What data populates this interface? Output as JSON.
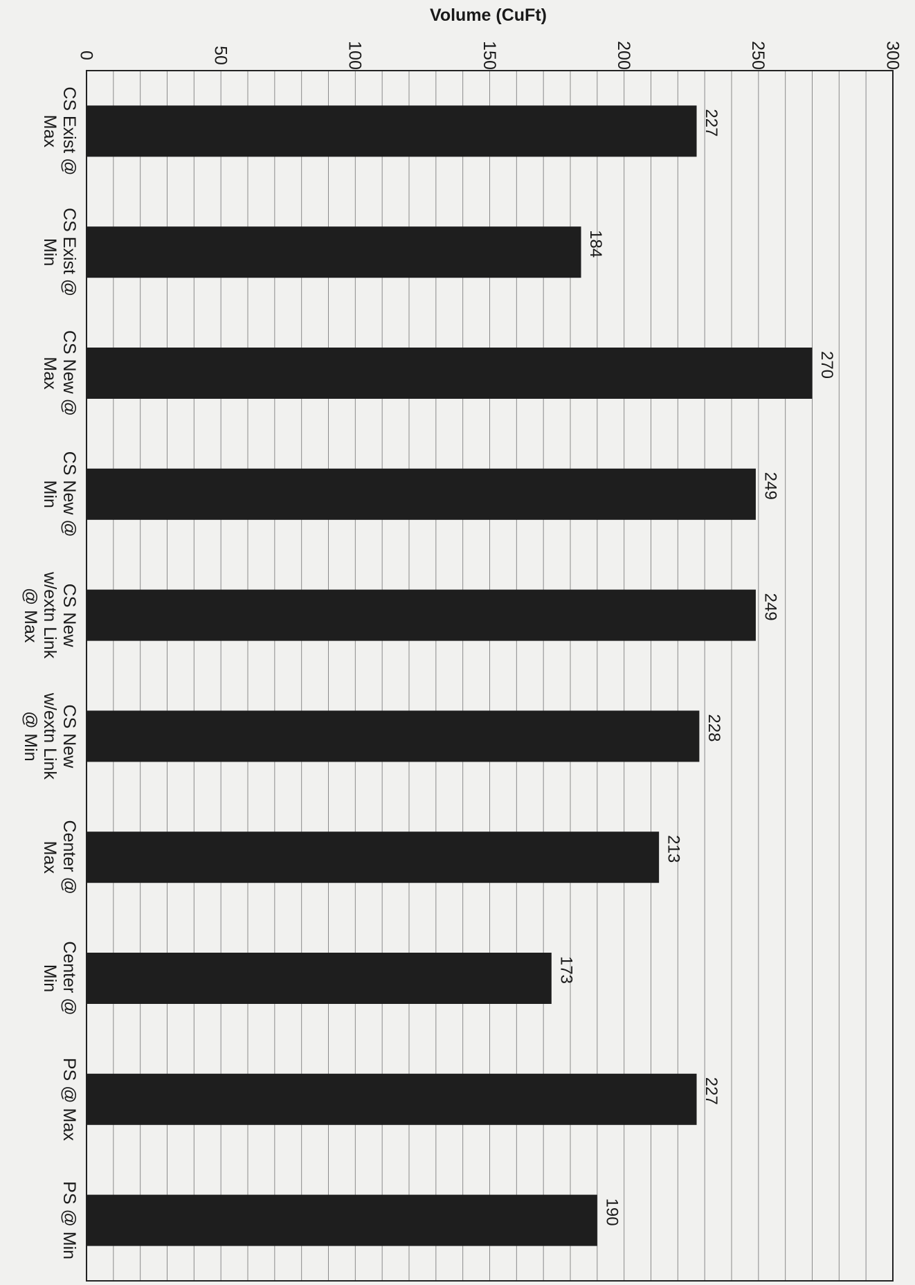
{
  "chart_data": {
    "type": "bar",
    "orientation": "rotated-90-clockwise",
    "title": "",
    "xlabel": "",
    "ylabel": "Volume (CuFt)",
    "categories": [
      [
        "CS Exist @",
        "Max"
      ],
      [
        "CS Exist @",
        "Min"
      ],
      [
        "CS New @",
        "Max"
      ],
      [
        "CS New @",
        "Min"
      ],
      [
        "CS New",
        "w/extn Link",
        "@ Max"
      ],
      [
        "CS New",
        "w/extn Link",
        "@ Min"
      ],
      [
        "Center @",
        "Max"
      ],
      [
        "Center @",
        "Min"
      ],
      [
        "PS @ Max"
      ],
      [
        "PS @ Min"
      ]
    ],
    "values": [
      227,
      184,
      270,
      249,
      249,
      228,
      213,
      173,
      227,
      190
    ],
    "data_labels": [
      "227",
      "184",
      "270",
      "249",
      "249",
      "228",
      "213",
      "173",
      "227",
      "190"
    ],
    "ylim": [
      0,
      300
    ],
    "y_ticks": [
      0,
      50,
      100,
      150,
      200,
      250,
      300
    ],
    "y_tick_labels": [
      "0",
      "50",
      "100",
      "150",
      "200",
      "250",
      "300"
    ],
    "grid": true,
    "bar_color": "#1e1e1e",
    "grid_color": "#8a8a8a",
    "background": "#f1f1ef"
  }
}
